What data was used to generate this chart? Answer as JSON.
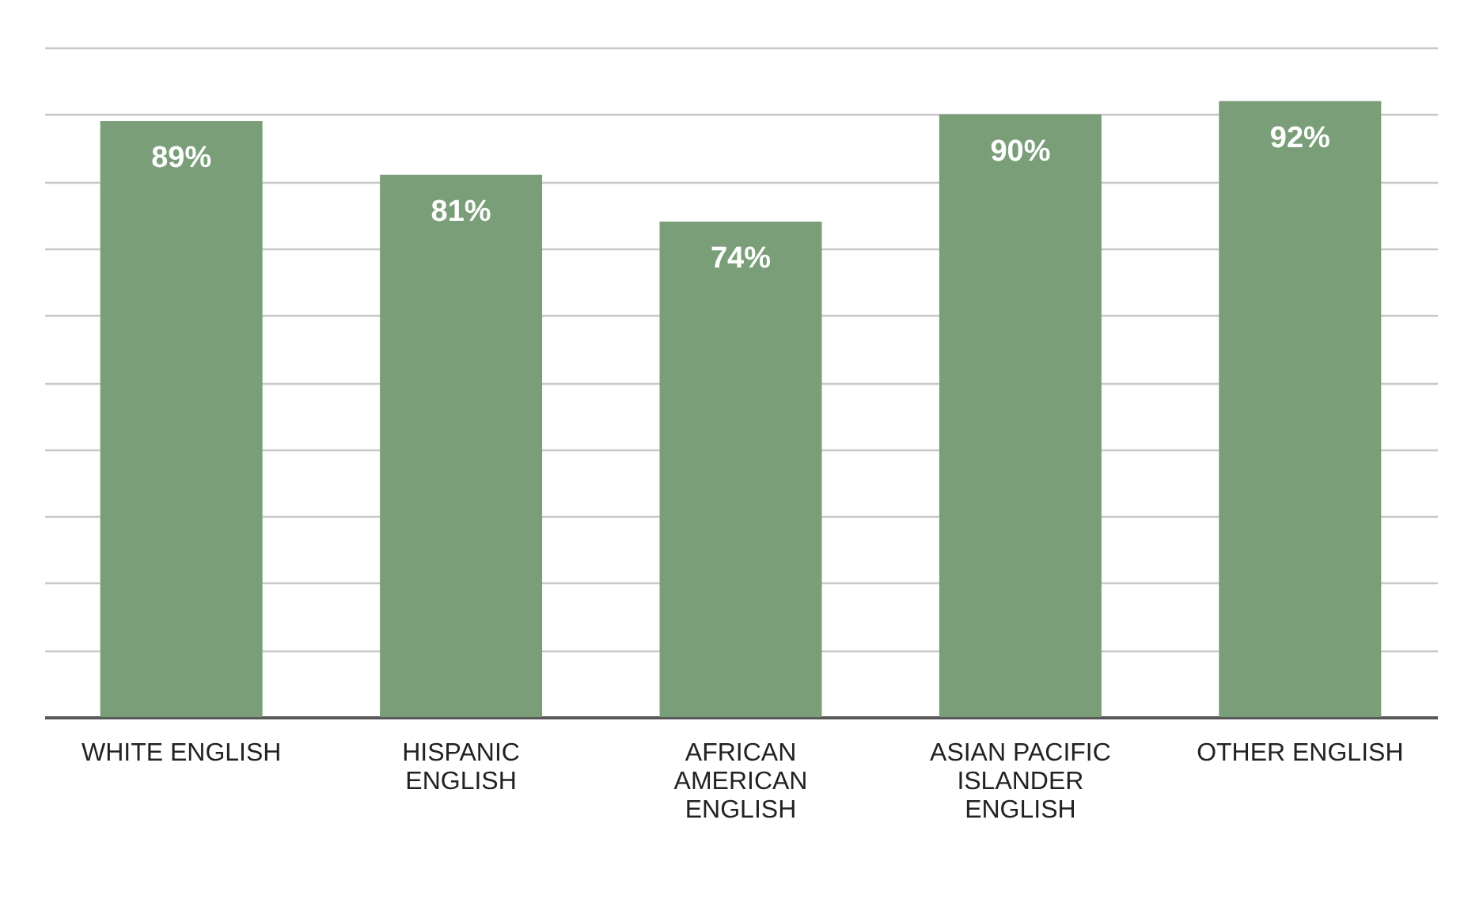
{
  "chart_data": {
    "type": "bar",
    "categories": [
      "WHITE ENGLISH",
      "HISPANIC ENGLISH",
      "AFRICAN AMERICAN ENGLISH",
      "ASIAN PACIFIC ISLANDER ENGLISH",
      "OTHER ENGLISH"
    ],
    "values": [
      89,
      81,
      74,
      90,
      92
    ],
    "value_labels": [
      "89%",
      "81%",
      "74%",
      "90%",
      "92%"
    ],
    "color": "#7a9e78",
    "ylim": [
      0,
      100
    ],
    "yticks": [
      {
        "value": 0,
        "label": null
      },
      {
        "value": 10,
        "label": null
      },
      {
        "value": 20,
        "label": null
      },
      {
        "value": 30,
        "label": null
      },
      {
        "value": 40,
        "label": null
      },
      {
        "value": 50,
        "label": null
      },
      {
        "value": 60,
        "label": null
      },
      {
        "value": 70,
        "label": null
      },
      {
        "value": 80,
        "label": null
      },
      {
        "value": 90,
        "label": null
      },
      {
        "value": 100,
        "label": null
      }
    ],
    "grid": "y",
    "tick_labels": "x"
  }
}
